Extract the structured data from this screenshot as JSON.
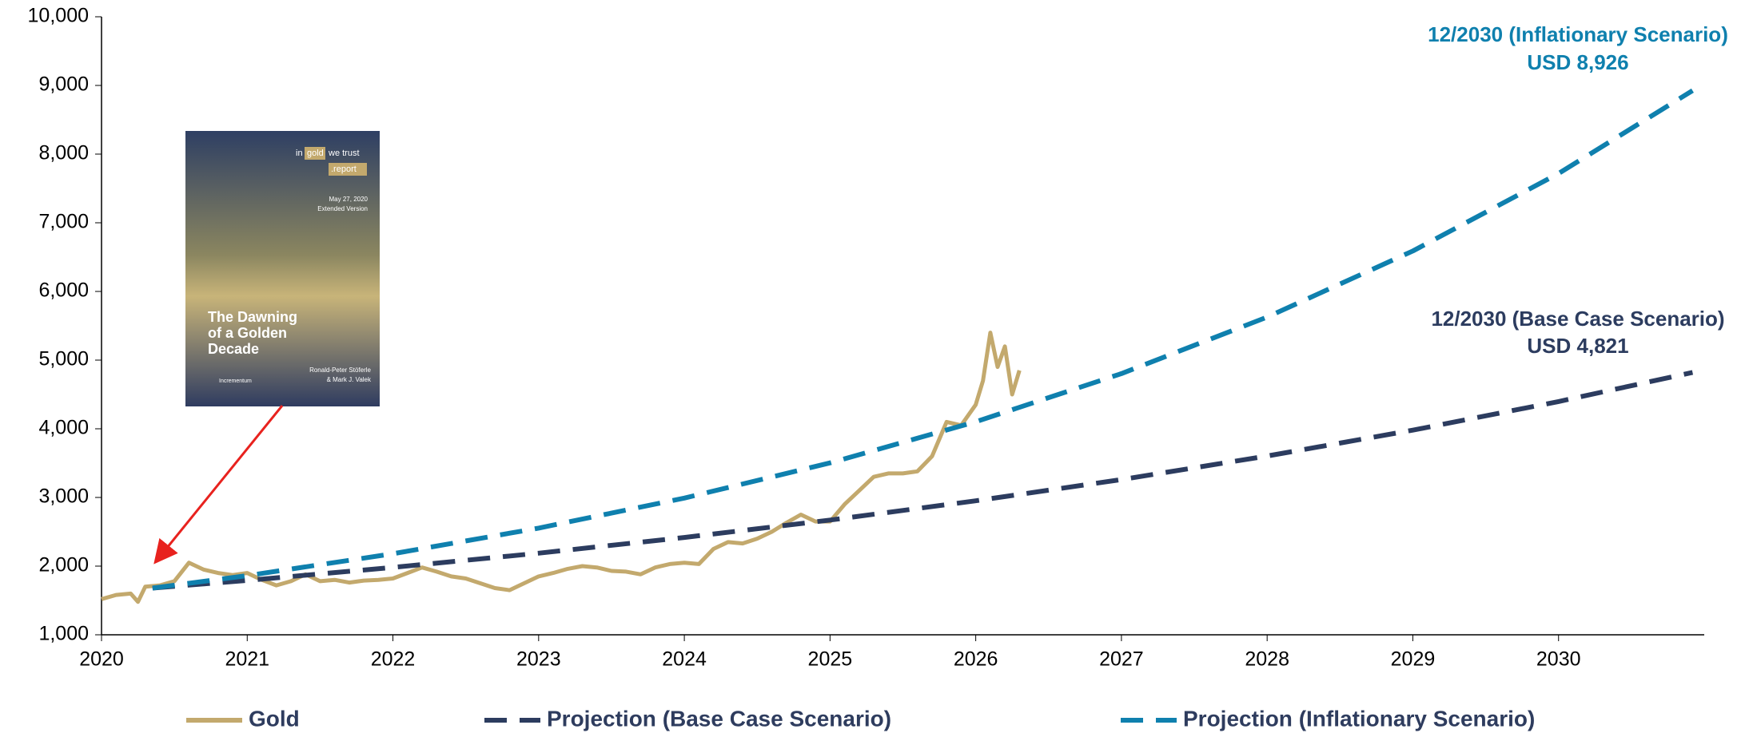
{
  "chart_data": {
    "type": "line",
    "xlim": [
      2020,
      2031
    ],
    "xticks": [
      2020,
      2021,
      2022,
      2023,
      2024,
      2025,
      2026,
      2027,
      2028,
      2029,
      2030
    ],
    "ylim": [
      1000,
      10000
    ],
    "yticks": [
      {
        "value": 1000,
        "label": "1,000"
      },
      {
        "value": 2000,
        "label": "2,000"
      },
      {
        "value": 3000,
        "label": "3,000"
      },
      {
        "value": 4000,
        "label": "4,000"
      },
      {
        "value": 5000,
        "label": "5,000"
      },
      {
        "value": 6000,
        "label": "6,000"
      },
      {
        "value": 7000,
        "label": "7,000"
      },
      {
        "value": 8000,
        "label": "8,000"
      },
      {
        "value": 9000,
        "label": "9,000"
      },
      {
        "value": 10000,
        "label": "10,000"
      }
    ],
    "legend": "bottom",
    "series": [
      {
        "name": "Gold",
        "color": "#c3a96d",
        "style": "solid",
        "x": [
          2020.0,
          2020.1,
          2020.2,
          2020.25,
          2020.3,
          2020.4,
          2020.5,
          2020.6,
          2020.7,
          2020.8,
          2020.9,
          2021.0,
          2021.1,
          2021.2,
          2021.3,
          2021.4,
          2021.5,
          2021.6,
          2021.7,
          2021.8,
          2021.9,
          2022.0,
          2022.1,
          2022.2,
          2022.3,
          2022.4,
          2022.5,
          2022.6,
          2022.7,
          2022.8,
          2022.9,
          2023.0,
          2023.1,
          2023.2,
          2023.3,
          2023.4,
          2023.5,
          2023.6,
          2023.7,
          2023.8,
          2023.9,
          2024.0,
          2024.1,
          2024.2,
          2024.3,
          2024.4,
          2024.5,
          2024.6,
          2024.7,
          2024.8,
          2024.9,
          2025.0,
          2025.1,
          2025.2,
          2025.3,
          2025.4,
          2025.5,
          2025.6,
          2025.7,
          2025.8,
          2025.9,
          2026.0,
          2026.05,
          2026.1,
          2026.15,
          2026.2,
          2026.25,
          2026.3
        ],
        "values": [
          1520,
          1580,
          1600,
          1480,
          1700,
          1720,
          1780,
          2050,
          1950,
          1900,
          1870,
          1900,
          1800,
          1720,
          1780,
          1880,
          1780,
          1800,
          1760,
          1790,
          1800,
          1820,
          1900,
          1980,
          1920,
          1850,
          1820,
          1750,
          1680,
          1650,
          1750,
          1850,
          1900,
          1960,
          2000,
          1980,
          1930,
          1920,
          1880,
          1980,
          2030,
          2050,
          2030,
          2250,
          2350,
          2330,
          2400,
          2500,
          2630,
          2750,
          2650,
          2650,
          2900,
          3100,
          3300,
          3350,
          3350,
          3380,
          3600,
          4100,
          4050,
          4350,
          4700,
          5400,
          4900,
          5200,
          4500,
          4850
        ]
      },
      {
        "name": "Projection (Base Case Scenario)",
        "color": "#2c3c5f",
        "style": "dashed",
        "x": [
          2020.35,
          2021,
          2022,
          2023,
          2024,
          2025,
          2026,
          2027,
          2028,
          2029,
          2030,
          2030.92
        ],
        "values": [
          1680,
          1792,
          1981,
          2188,
          2418,
          2671,
          2951,
          3261,
          3603,
          3980,
          4397,
          4821
        ]
      },
      {
        "name": "Projection (Inflationary Scenario)",
        "color": "#0f80ae",
        "style": "dashed",
        "x": [
          2020.35,
          2021,
          2022,
          2023,
          2024,
          2025,
          2026,
          2027,
          2028,
          2029,
          2030,
          2030.92
        ],
        "values": [
          1680,
          1862,
          2180,
          2554,
          2991,
          3503,
          4102,
          4804,
          5627,
          6590,
          7718,
          8926
        ]
      }
    ],
    "annotations": [
      {
        "lines": [
          "12/2030 (Inflationary Scenario)",
          "USD 8,926"
        ],
        "color": "#0f80ae"
      },
      {
        "lines": [
          "12/2030 (Base Case Scenario)",
          "USD 4,821"
        ],
        "color": "#2c3c5f"
      }
    ]
  },
  "cover": {
    "brand": [
      "in",
      "gold",
      "we trust",
      ".report"
    ],
    "date": [
      "May 27, 2020",
      "Extended Version"
    ],
    "title": [
      "The Dawning",
      "of a Golden",
      "Decade"
    ],
    "authors": [
      "Ronald-Peter Stöferle",
      "& Mark J. Valek"
    ],
    "publisher": "Incrementum"
  }
}
